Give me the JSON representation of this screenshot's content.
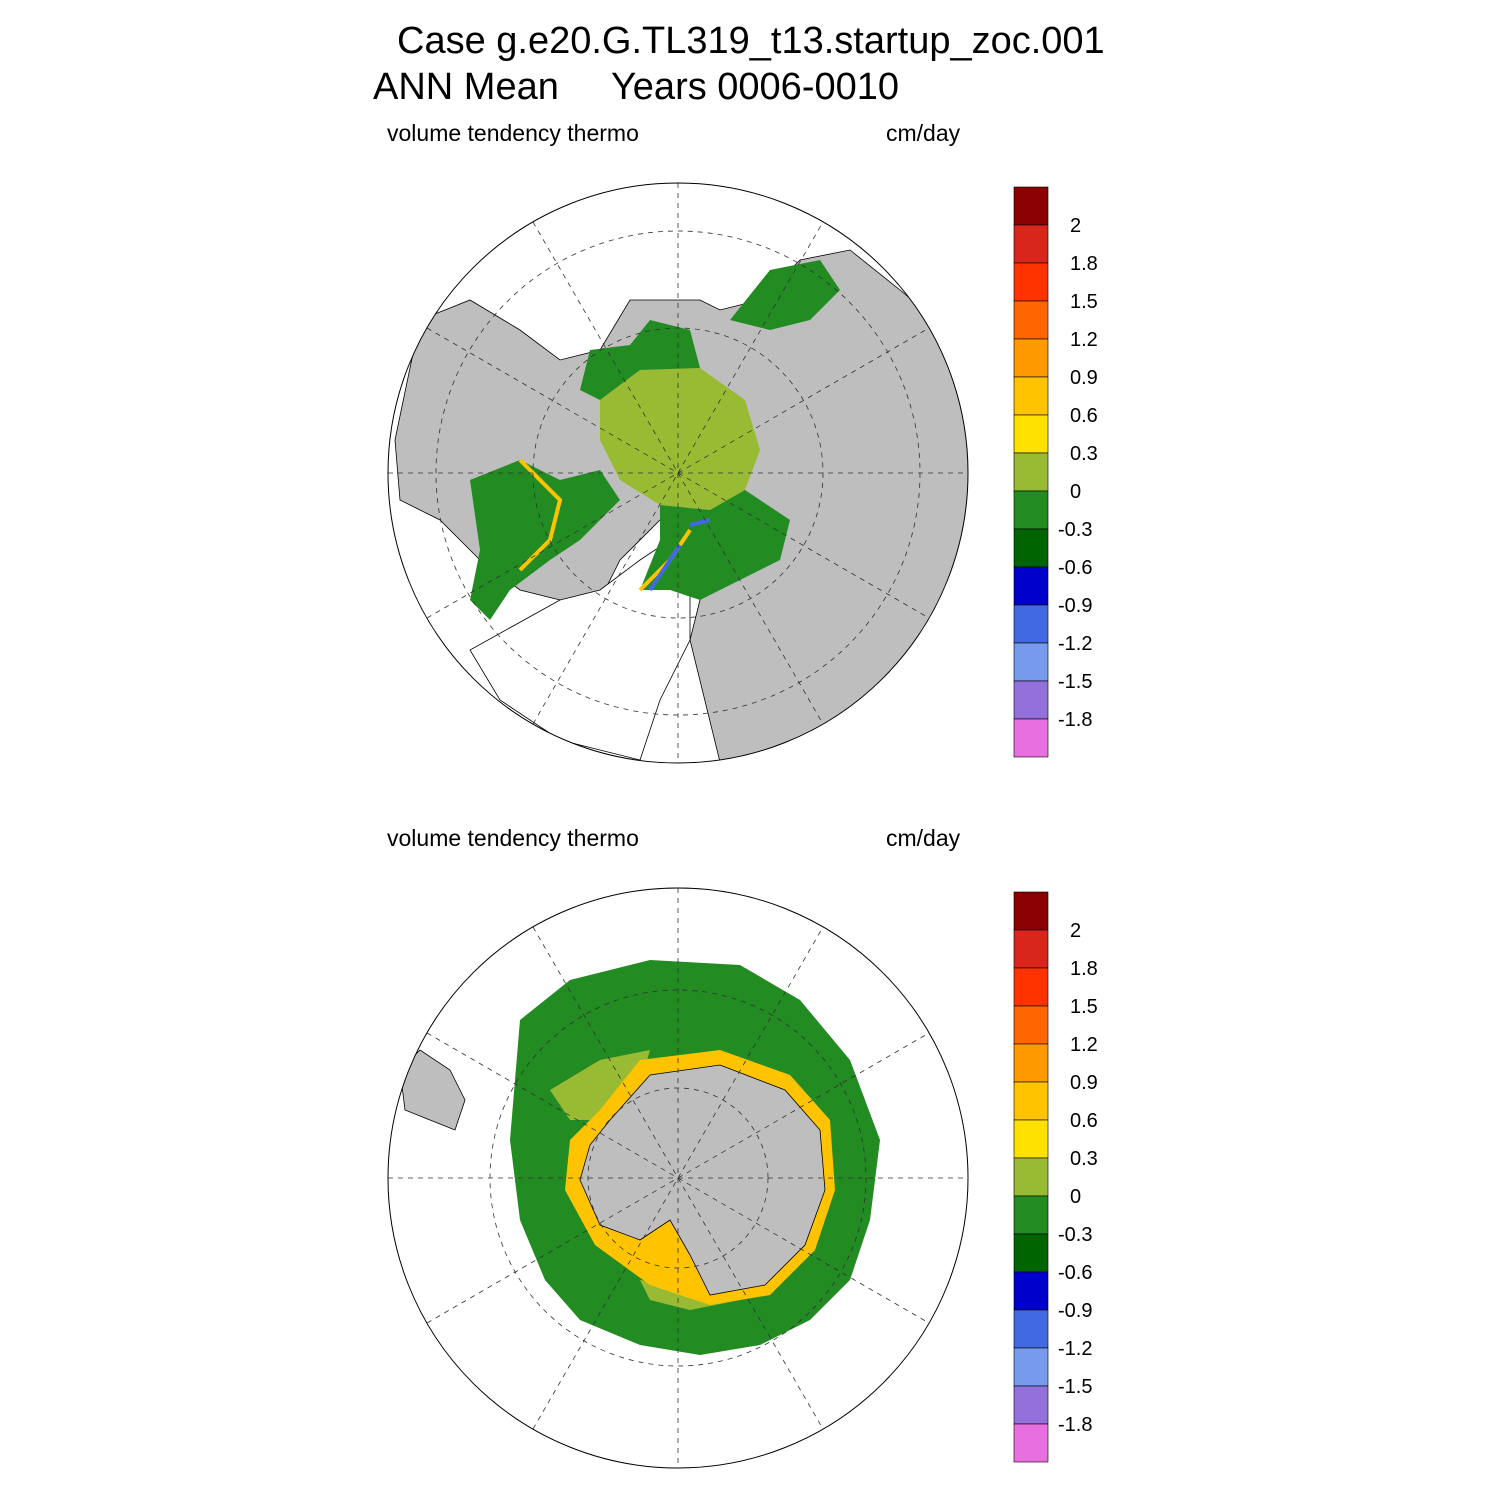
{
  "title": {
    "line1": "Case g.e20.G.TL319_t13.startup_zoc.001",
    "line2": "ANN Mean     Years 0006-0010"
  },
  "panels": [
    {
      "hemisphere": "north",
      "left_label": "volume tendency thermo",
      "right_label": "cm/day"
    },
    {
      "hemisphere": "south",
      "left_label": "volume tendency thermo",
      "right_label": "cm/day"
    }
  ],
  "colorbar": {
    "labels": [
      "2",
      "1.8",
      "1.5",
      "1.2",
      "0.9",
      "0.6",
      "0.3",
      "0",
      "-0.3",
      "-0.6",
      "-0.9",
      "-1.2",
      "-1.5",
      "-1.8"
    ],
    "colors": [
      "#8b0000",
      "#d9261c",
      "#ff3300",
      "#ff6600",
      "#ff9900",
      "#ffc300",
      "#ffe100",
      "#99bb33",
      "#228b22",
      "#006400",
      "#0000cd",
      "#4169e1",
      "#7799ee",
      "#9370db",
      "#e86fe0"
    ]
  },
  "colors": {
    "land": "#bebebe",
    "ice_neutral": "#99bb33",
    "ice_negative": "#228b22",
    "grid": "#333333"
  }
}
